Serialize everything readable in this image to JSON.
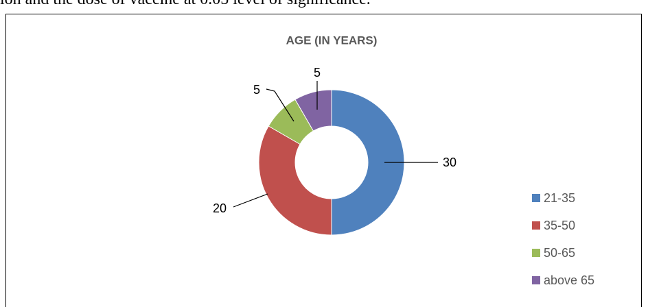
{
  "document_text": "ion and the dose of vaccine at 0.05 level of significance.",
  "chart_data": {
    "type": "pie",
    "donut": true,
    "title": "AGE (IN YEARS)",
    "categories": [
      "21-35",
      "35-50",
      "50-65",
      "above 65"
    ],
    "values": [
      30,
      20,
      5,
      5
    ],
    "colors": [
      "#4f81bd",
      "#c0504d",
      "#9bbb59",
      "#8064a2"
    ],
    "legend": "right"
  }
}
